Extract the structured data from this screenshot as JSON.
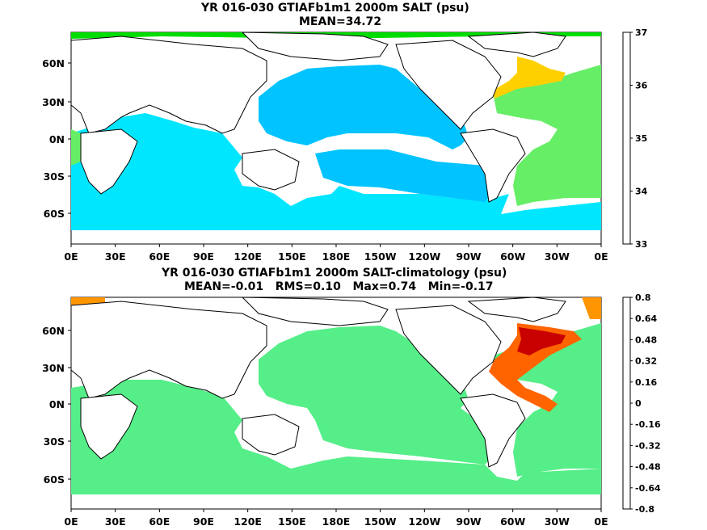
{
  "panels": [
    {
      "title_line1": "YR 016-030 GTIAFb1m1 2000m SALT (psu)",
      "title_line2": "MEAN=34.72",
      "lat_labels": [
        "60N",
        "30N",
        "0N",
        "30S",
        "60S"
      ],
      "lon_labels": [
        "0E",
        "30E",
        "60E",
        "90E",
        "120E",
        "150E",
        "180E",
        "150W",
        "120W",
        "90W",
        "60W",
        "30W",
        "0E"
      ],
      "colorbar_labels": [
        "37",
        "36",
        "35",
        "34",
        "33"
      ],
      "colorbar_colors": [
        "#666666",
        "#aaaaaa",
        "#ff00ff",
        "#b000c8",
        "#5a00d2",
        "#0000ff",
        "#0064ff",
        "#0096ff",
        "#00c8ff",
        "#00e6ff",
        "#33ff99",
        "#00dd00",
        "#66ff66",
        "#99ee66",
        "#ffff00",
        "#ffc800",
        "#ff9600",
        "#ff6400",
        "#ff0000",
        "#c80000",
        "#800000"
      ],
      "fields": {
        "pacific": "#00c3ff",
        "indian": "#00e6ff",
        "south_pacific": "#00c3ff",
        "atlantic_main": "#66ee66",
        "atlantic_warm": "#ffd000",
        "southern": "#00e6ff"
      }
    },
    {
      "title_line1": "YR 016-030 GTIAFb1m1 2000m SALT-climatology (psu)",
      "title_line2": "MEAN=-0.01   RMS=0.10   Max=0.74   Min=-0.17",
      "lat_labels": [
        "60N",
        "30N",
        "0N",
        "30S",
        "60S"
      ],
      "lon_labels": [
        "0E",
        "30E",
        "60E",
        "90E",
        "120E",
        "150E",
        "180E",
        "150W",
        "120W",
        "90W",
        "60W",
        "30W",
        "0E"
      ],
      "colorbar_labels": [
        "0.8",
        "0.64",
        "0.48",
        "0.32",
        "0.16",
        "0",
        "-0.16",
        "-0.32",
        "-0.48",
        "-0.64",
        "-0.8"
      ],
      "colorbar_colors": [
        "#666666",
        "#ff00ff",
        "#b000c8",
        "#5a00d2",
        "#0000ff",
        "#0064ff",
        "#0096ff",
        "#00c8ff",
        "#00e6ff",
        "#33ee99",
        "#55ee88",
        "#00dd00",
        "#66ff66",
        "#ffff00",
        "#ffc800",
        "#ff9600",
        "#ff6400",
        "#ff3200",
        "#e60000",
        "#c80000",
        "#800000"
      ],
      "fields": {
        "ocean": "#55ee88",
        "atlantic_anom": "#ff6400",
        "atlantic_core": "#c80000"
      }
    }
  ]
}
